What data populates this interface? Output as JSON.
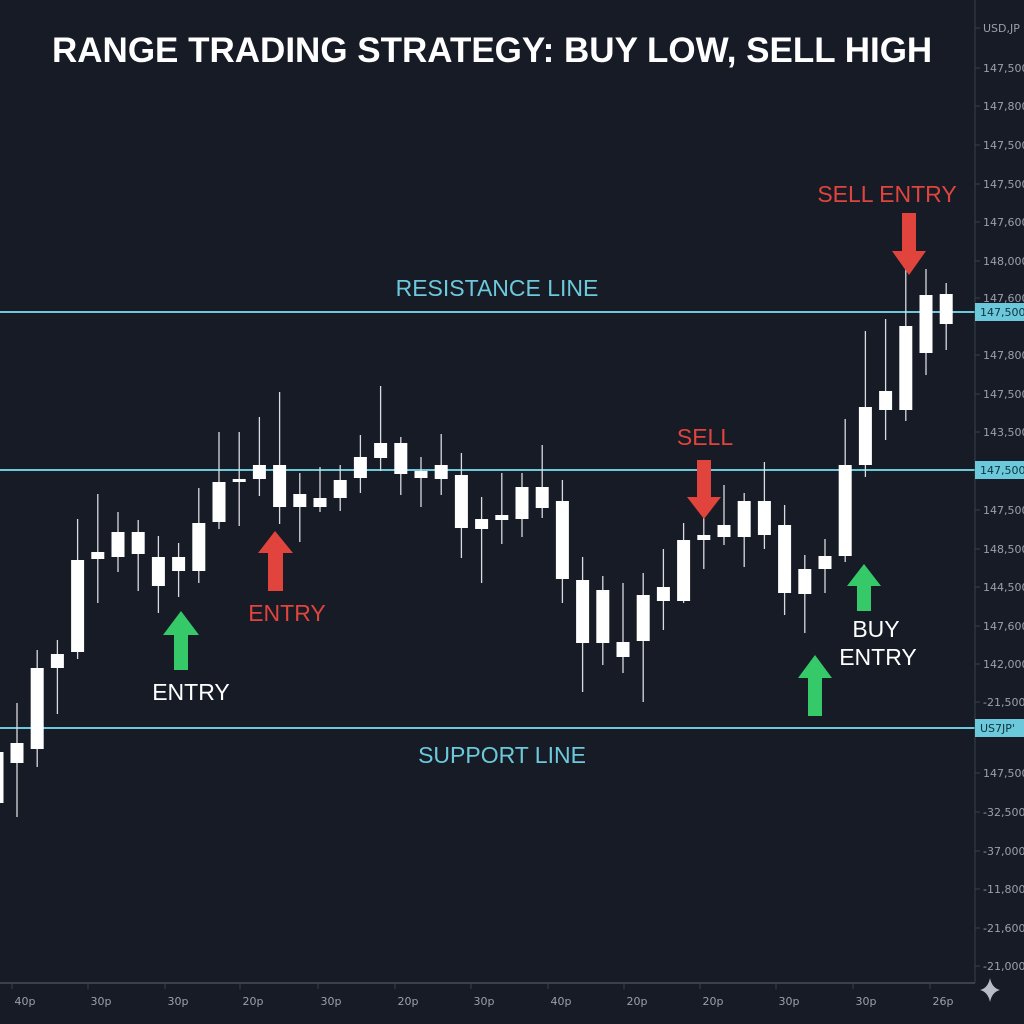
{
  "chart_data": {
    "type": "candlestick",
    "title": "RANGE TRADING STRATEGY: BUY LOW, SELL HIGH",
    "ylim": [
      145.05,
      150.0
    ],
    "grid": false,
    "candle_color": "#ffffff",
    "background": "#161b26",
    "candles": [
      {
        "high": 146.275,
        "body_high": 146.24,
        "body_low": 145.985,
        "low": 145.925
      },
      {
        "high": 146.485,
        "body_high": 146.285,
        "body_low": 146.185,
        "low": 145.915
      },
      {
        "high": 146.75,
        "body_high": 146.66,
        "body_low": 146.255,
        "low": 146.165
      },
      {
        "high": 146.8,
        "body_high": 146.73,
        "body_low": 146.66,
        "low": 146.43
      },
      {
        "high": 147.405,
        "body_high": 147.2,
        "body_low": 146.74,
        "low": 146.705
      },
      {
        "high": 147.53,
        "body_high": 147.24,
        "body_low": 147.205,
        "low": 146.985
      },
      {
        "high": 147.44,
        "body_high": 147.34,
        "body_low": 147.215,
        "low": 147.14
      },
      {
        "high": 147.4,
        "body_high": 147.34,
        "body_low": 147.23,
        "low": 147.045
      },
      {
        "high": 147.32,
        "body_high": 147.215,
        "body_low": 147.07,
        "low": 146.935
      },
      {
        "high": 147.285,
        "body_high": 147.215,
        "body_low": 147.145,
        "low": 147.015
      },
      {
        "high": 147.56,
        "body_high": 147.385,
        "body_low": 147.145,
        "low": 147.085
      },
      {
        "high": 147.84,
        "body_high": 147.59,
        "body_low": 147.39,
        "low": 147.355
      },
      {
        "high": 147.84,
        "body_high": 147.605,
        "body_low": 147.59,
        "low": 147.37
      },
      {
        "high": 147.915,
        "body_high": 147.675,
        "body_low": 147.605,
        "low": 147.52
      },
      {
        "high": 148.04,
        "body_high": 147.675,
        "body_low": 147.465,
        "low": 147.38
      },
      {
        "high": 147.635,
        "body_high": 147.53,
        "body_low": 147.465,
        "low": 147.29
      },
      {
        "high": 147.665,
        "body_high": 147.51,
        "body_low": 147.465,
        "low": 147.44
      },
      {
        "high": 147.675,
        "body_high": 147.6,
        "body_low": 147.51,
        "low": 147.445
      },
      {
        "high": 147.825,
        "body_high": 147.715,
        "body_low": 147.61,
        "low": 147.535
      },
      {
        "high": 148.07,
        "body_high": 147.785,
        "body_low": 147.71,
        "low": 147.645
      },
      {
        "high": 147.815,
        "body_high": 147.785,
        "body_low": 147.63,
        "low": 147.525
      },
      {
        "high": 147.715,
        "body_high": 147.645,
        "body_low": 147.61,
        "low": 147.465
      },
      {
        "high": 147.83,
        "body_high": 147.675,
        "body_low": 147.605,
        "low": 147.525
      },
      {
        "high": 147.735,
        "body_high": 147.625,
        "body_low": 147.36,
        "low": 147.21
      },
      {
        "high": 147.515,
        "body_high": 147.405,
        "body_low": 147.355,
        "low": 147.085
      },
      {
        "high": 147.635,
        "body_high": 147.425,
        "body_low": 147.4,
        "low": 147.28
      },
      {
        "high": 147.635,
        "body_high": 147.565,
        "body_low": 147.405,
        "low": 147.315
      },
      {
        "high": 147.775,
        "body_high": 147.565,
        "body_low": 147.46,
        "low": 147.41
      },
      {
        "high": 147.6,
        "body_high": 147.495,
        "body_low": 147.105,
        "low": 146.985
      },
      {
        "high": 147.215,
        "body_high": 147.1,
        "body_low": 146.785,
        "low": 146.54
      },
      {
        "high": 147.12,
        "body_high": 147.05,
        "body_low": 146.785,
        "low": 146.675
      },
      {
        "high": 147.085,
        "body_high": 146.79,
        "body_low": 146.715,
        "low": 146.635
      },
      {
        "high": 147.135,
        "body_high": 147.025,
        "body_low": 146.795,
        "low": 146.49
      },
      {
        "high": 147.255,
        "body_high": 147.065,
        "body_low": 146.995,
        "low": 146.85
      },
      {
        "high": 147.385,
        "body_high": 147.3,
        "body_low": 146.995,
        "low": 146.985
      },
      {
        "high": 147.455,
        "body_high": 147.325,
        "body_low": 147.3,
        "low": 147.155
      },
      {
        "high": 147.575,
        "body_high": 147.375,
        "body_low": 147.315,
        "low": 147.275
      },
      {
        "high": 147.535,
        "body_high": 147.495,
        "body_low": 147.315,
        "low": 147.165
      },
      {
        "high": 147.69,
        "body_high": 147.495,
        "body_low": 147.325,
        "low": 147.255
      },
      {
        "high": 147.475,
        "body_high": 147.375,
        "body_low": 147.035,
        "low": 146.925
      },
      {
        "high": 147.225,
        "body_high": 147.155,
        "body_low": 147.03,
        "low": 146.835
      },
      {
        "high": 147.305,
        "body_high": 147.22,
        "body_low": 147.155,
        "low": 147.035
      },
      {
        "high": 147.905,
        "body_high": 147.675,
        "body_low": 147.22,
        "low": 147.19
      },
      {
        "high": 148.345,
        "body_high": 147.965,
        "body_low": 147.675,
        "low": 147.615
      },
      {
        "high": 148.405,
        "body_high": 148.045,
        "body_low": 147.95,
        "low": 147.8
      },
      {
        "high": 148.67,
        "body_high": 148.37,
        "body_low": 147.95,
        "low": 147.895
      },
      {
        "high": 148.655,
        "body_high": 148.525,
        "body_low": 148.235,
        "low": 148.125
      },
      {
        "high": 148.585,
        "body_high": 148.53,
        "body_low": 148.38,
        "low": 148.25
      }
    ],
    "levels": [
      {
        "label": "RESISTANCE LINE",
        "value": 148.44,
        "color": "#6cc9dc",
        "axis_tag": "147,500"
      },
      {
        "label": "",
        "value": 147.65,
        "color": "#6cc9dc",
        "axis_tag": "147,500"
      },
      {
        "label": "SUPPORT LINE",
        "value": 146.36,
        "color": "#6cc9dc",
        "axis_tag": "US7JP'"
      }
    ],
    "y_tick_labels": [
      "USD,JP",
      "147,500",
      "147,800",
      "147,500",
      "147,500",
      "147,600",
      "148,000",
      "147,600",
      "147,800",
      "147,500",
      "143,500",
      "147,500",
      "148,500",
      "144,500",
      "147,600",
      "142,000",
      "-21,500",
      "147,500",
      "-32,500",
      "-37,000",
      "-11,800",
      "-21,600",
      "-21,000"
    ],
    "x_tick_labels": [
      "40p",
      "30p",
      "30p",
      "20p",
      "30p",
      "20p",
      "30p",
      "40p",
      "20p",
      "20p",
      "30p",
      "30p",
      "26p"
    ],
    "annotations": [
      {
        "text": "ENTRY",
        "color": "#ffffff",
        "arrow": "up",
        "arrow_color": "#35c96a"
      },
      {
        "text": "ENTRY",
        "color": "#e0443c",
        "arrow": "up",
        "arrow_color": "#e0443c"
      },
      {
        "text": "SELL",
        "color": "#e0443c",
        "arrow": "down",
        "arrow_color": "#e0443c"
      },
      {
        "text_lines": [
          "BUY",
          "ENTRY"
        ],
        "color": "#ffffff",
        "arrow": "up",
        "arrow_color": "#35c96a"
      },
      {
        "text": "",
        "arrow": "up",
        "arrow_color": "#35c96a"
      },
      {
        "text": "SELL ENTRY",
        "color": "#e0443c",
        "arrow": "down",
        "arrow_color": "#e0443c"
      }
    ]
  },
  "icons": {
    "corner": "sparkle-icon"
  }
}
